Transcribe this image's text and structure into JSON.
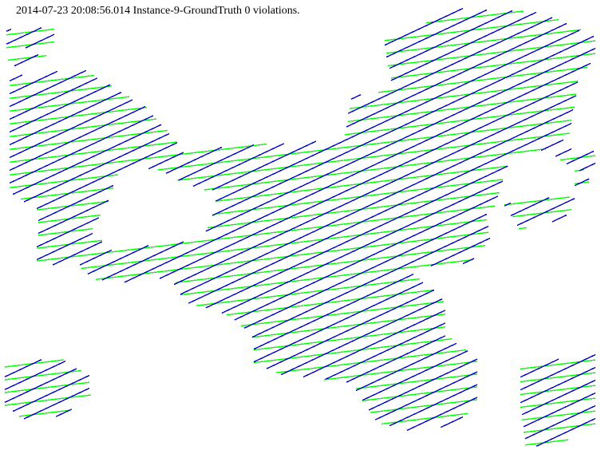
{
  "header": {
    "title": "2014-07-23 20:08:56.014 Instance-9-GroundTruth 0 violations."
  },
  "colors": {
    "background": "#ffffff",
    "green_hatch": "#00ff00",
    "blue_hatch": "#0000cc"
  },
  "icons": []
}
